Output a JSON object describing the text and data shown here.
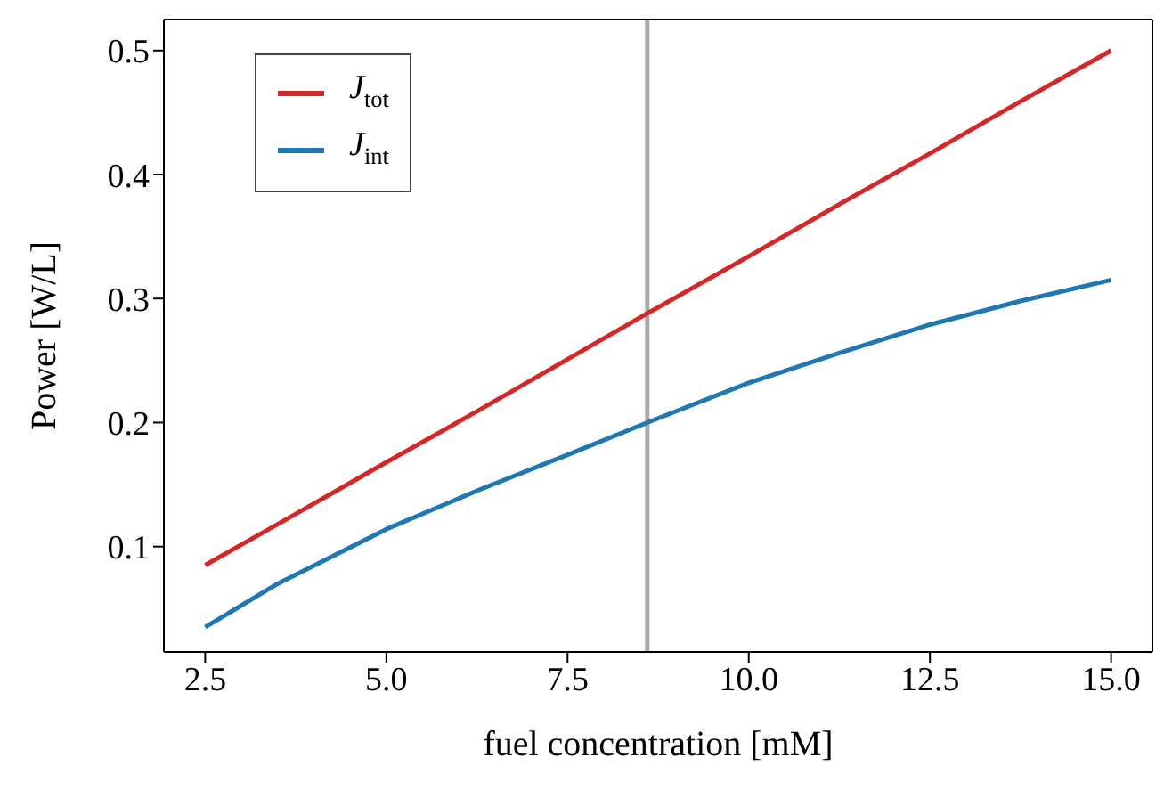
{
  "chart_data": {
    "type": "line",
    "xlabel": "fuel concentration [mM]",
    "ylabel": "Power [W/L]",
    "x": [
      2.5,
      3.5,
      5.0,
      6.25,
      7.5,
      8.6,
      10.0,
      11.25,
      12.5,
      13.75,
      15.0
    ],
    "series": [
      {
        "name": "J$_{tot}$",
        "color": "#d62728",
        "values": [
          0.085,
          0.118,
          0.168,
          0.209,
          0.251,
          0.288,
          0.334,
          0.376,
          0.417,
          0.459,
          0.5
        ]
      },
      {
        "name": "J$_{int}$",
        "color": "#1f77b4",
        "values": [
          0.035,
          0.07,
          0.114,
          0.145,
          0.174,
          0.2,
          0.232,
          0.256,
          0.279,
          0.298,
          0.315
        ]
      }
    ],
    "xlim": [
      1.93,
      15.57
    ],
    "xticks": [
      {
        "value": 2.5,
        "label": "2.5"
      },
      {
        "value": 5,
        "label": "5.0"
      },
      {
        "value": 7.5,
        "label": "7.5"
      },
      {
        "value": 10,
        "label": "10.0"
      },
      {
        "value": 12.5,
        "label": "12.5"
      },
      {
        "value": 15,
        "label": "15.0"
      }
    ],
    "ylim": [
      0.015,
      0.525
    ],
    "yticks": [
      0.1,
      0.2,
      0.3,
      0.4,
      0.5
    ],
    "ref_lines": [
      {
        "axis": "x",
        "value": 8.6,
        "color": "#aaaaaa"
      }
    ],
    "legend": "top left",
    "marker": "none",
    "line_style": "solid"
  }
}
